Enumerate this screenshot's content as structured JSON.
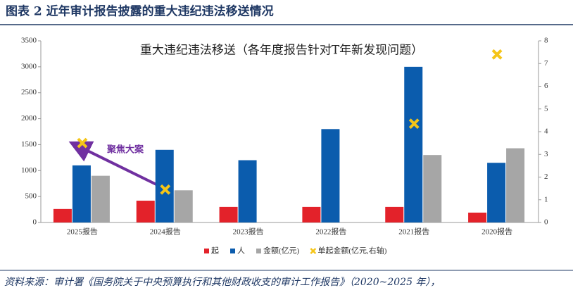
{
  "header": {
    "title": "图表 2   近年审计报告披露的重大违纪违法移送情况"
  },
  "source": "资料来源：审计署《国务院关于中央预算执行和其他财政收支的审计工作报告》（2020~2025 年），",
  "chart_data": {
    "type": "bar",
    "title": "重大违纪违法移送（各年度报告针对T年新发现问题）",
    "annotation": "聚焦大案",
    "categories": [
      "2025报告",
      "2024报告",
      "2023报告",
      "2022报告",
      "2021报告",
      "2020报告"
    ],
    "series": [
      {
        "name": "起",
        "color": "#e3222a",
        "values": [
          260,
          420,
          300,
          300,
          300,
          190
        ]
      },
      {
        "name": "人",
        "color": "#0b5cad",
        "values": [
          1100,
          1400,
          1200,
          1800,
          3000,
          1150
        ]
      },
      {
        "name": "金额(亿元)",
        "color": "#a6a6a6",
        "values": [
          900,
          620,
          null,
          null,
          1300,
          1430
        ]
      },
      {
        "name": "单起金额(亿元,右轴)",
        "color": "#f5c518",
        "axis": "y2",
        "marker": "x",
        "values": [
          3.5,
          1.45,
          null,
          null,
          4.35,
          7.4
        ]
      }
    ],
    "ylim": [
      0,
      3500
    ],
    "yticks": [
      0,
      500,
      1000,
      1500,
      2000,
      2500,
      3000,
      3500
    ],
    "y2lim": [
      0,
      8
    ],
    "y2ticks": [
      0,
      1,
      2,
      3,
      4,
      5,
      6,
      7,
      8
    ],
    "legend": "bottom"
  }
}
